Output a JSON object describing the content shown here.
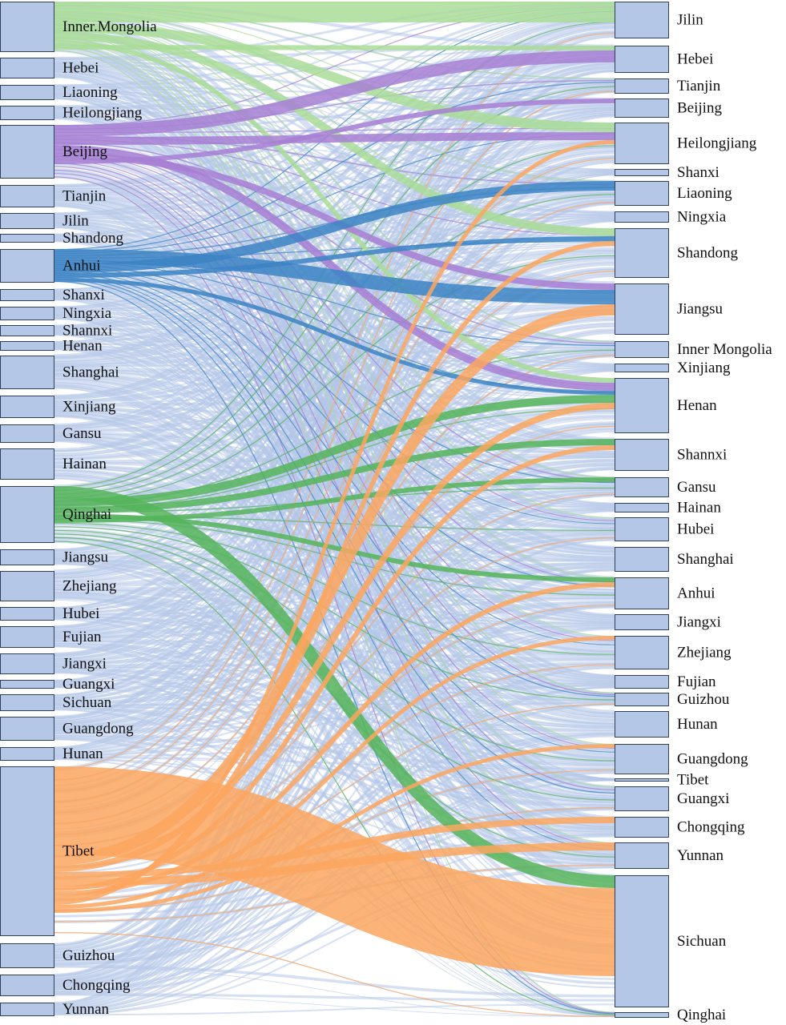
{
  "colors": {
    "node_fill": "#b4c7e7",
    "node_stroke": "#2f3f57",
    "flow_default": "#b4c7e7",
    "flow_inner_mongolia": "#a9dc98",
    "flow_beijing": "#a77fd3",
    "flow_anhui": "#3c84c4",
    "flow_qinghai": "#55b45a",
    "flow_tibet": "#fba65f"
  },
  "chart_data": {
    "type": "sankey",
    "source_nodes": [
      {
        "label": "Inner.Mongolia",
        "color": "#a9dc98"
      },
      {
        "label": "Hebei"
      },
      {
        "label": "Liaoning"
      },
      {
        "label": "Heilongjiang"
      },
      {
        "label": "Beijing",
        "color": "#a77fd3"
      },
      {
        "label": "Tianjin"
      },
      {
        "label": "Jilin"
      },
      {
        "label": "Shandong"
      },
      {
        "label": "Anhui",
        "color": "#3c84c4"
      },
      {
        "label": "Shanxi"
      },
      {
        "label": "Ningxia"
      },
      {
        "label": "Shannxi"
      },
      {
        "label": "Henan"
      },
      {
        "label": "Shanghai"
      },
      {
        "label": "Xinjiang"
      },
      {
        "label": "Gansu"
      },
      {
        "label": "Hainan"
      },
      {
        "label": "Qinghai",
        "color": "#55b45a"
      },
      {
        "label": "Jiangsu"
      },
      {
        "label": "Zhejiang"
      },
      {
        "label": "Hubei"
      },
      {
        "label": "Fujian"
      },
      {
        "label": "Jiangxi"
      },
      {
        "label": "Guangxi"
      },
      {
        "label": "Sichuan"
      },
      {
        "label": "Guangdong"
      },
      {
        "label": "Hunan"
      },
      {
        "label": "Tibet",
        "color": "#fba65f"
      },
      {
        "label": "Guizhou"
      },
      {
        "label": "Chongqing"
      },
      {
        "label": "Yunnan"
      }
    ],
    "target_nodes": [
      {
        "label": "Jilin"
      },
      {
        "label": "Hebei"
      },
      {
        "label": "Tianjin"
      },
      {
        "label": "Beijing"
      },
      {
        "label": "Heilongjiang"
      },
      {
        "label": "Shanxi"
      },
      {
        "label": "Liaoning"
      },
      {
        "label": "Ningxia"
      },
      {
        "label": "Shandong"
      },
      {
        "label": "Jiangsu"
      },
      {
        "label": "Inner Mongolia"
      },
      {
        "label": "Xinjiang"
      },
      {
        "label": "Henan"
      },
      {
        "label": "Shannxi"
      },
      {
        "label": "Gansu"
      },
      {
        "label": "Hainan"
      },
      {
        "label": "Hubei"
      },
      {
        "label": "Shanghai"
      },
      {
        "label": "Anhui"
      },
      {
        "label": "Jiangxi"
      },
      {
        "label": "Zhejiang"
      },
      {
        "label": "Fujian"
      },
      {
        "label": "Guizhou"
      },
      {
        "label": "Hunan"
      },
      {
        "label": "Guangdong"
      },
      {
        "label": "Tibet"
      },
      {
        "label": "Guangxi"
      },
      {
        "label": "Chongqing"
      },
      {
        "label": "Yunnan"
      },
      {
        "label": "Sichuan"
      },
      {
        "label": "Qinghai"
      }
    ]
  }
}
